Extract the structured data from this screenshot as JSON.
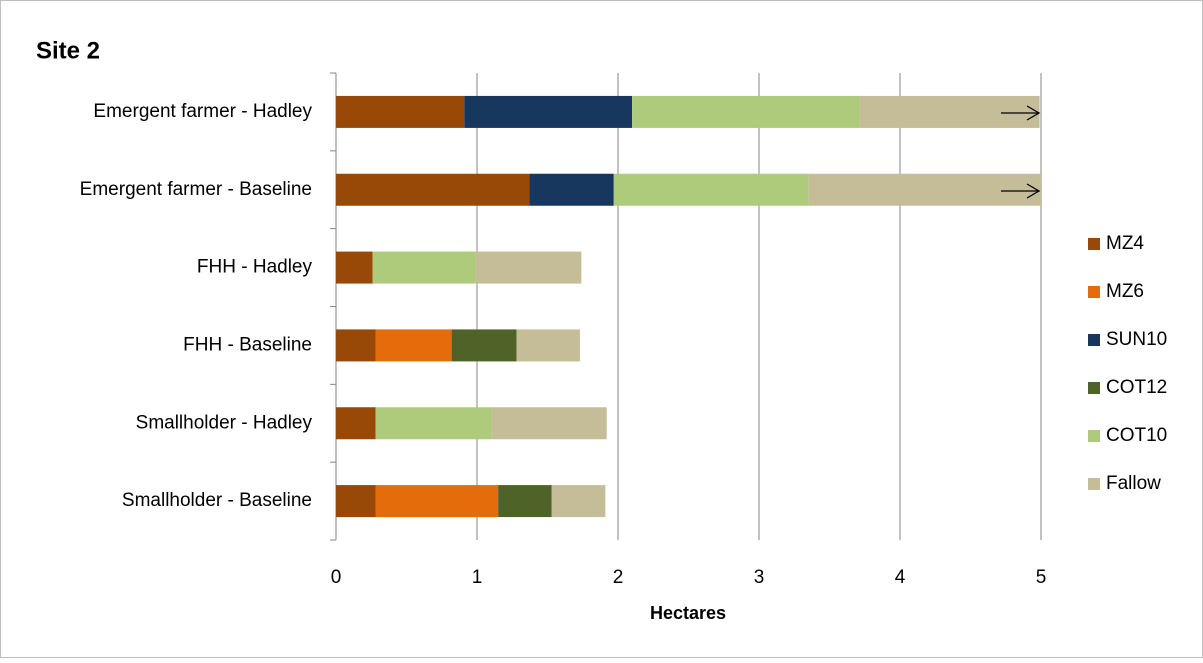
{
  "chart_data": {
    "type": "stacked-bar-horizontal",
    "title": "Site 2",
    "x_label": "Hectares",
    "categories": [
      "Emergent farmer - Hadley",
      "Emergent farmer - Baseline",
      "FHH - Hadley",
      "FHH - Baseline",
      "Smallholder - Hadley",
      "Smallholder - Baseline"
    ],
    "series": [
      {
        "name": "MZ4",
        "color": "#984807",
        "values": [
          0.91,
          1.37,
          0.26,
          0.28,
          0.28,
          0.28
        ]
      },
      {
        "name": "MZ6",
        "color": "#e46c0a",
        "values": [
          0,
          0,
          0,
          0.54,
          0,
          0.87
        ]
      },
      {
        "name": "SUN10",
        "color": "#17375e",
        "values": [
          1.19,
          0.6,
          0,
          0,
          0,
          0
        ]
      },
      {
        "name": "COT12",
        "color": "#4f6228",
        "values": [
          0,
          0,
          0,
          0.46,
          0,
          0.38
        ]
      },
      {
        "name": "COT10",
        "color": "#aecb7c",
        "values": [
          1.61,
          1.38,
          0.73,
          0,
          0.82,
          0
        ]
      },
      {
        "name": "Fallow",
        "color": "#c4bd97",
        "values": [
          1.28,
          1.65,
          0.75,
          0.45,
          0.82,
          0.38
        ]
      }
    ],
    "xlim": [
      0,
      5
    ],
    "xticks": [
      0,
      1,
      2,
      3,
      4,
      5
    ],
    "grid": true,
    "legend": "right"
  }
}
